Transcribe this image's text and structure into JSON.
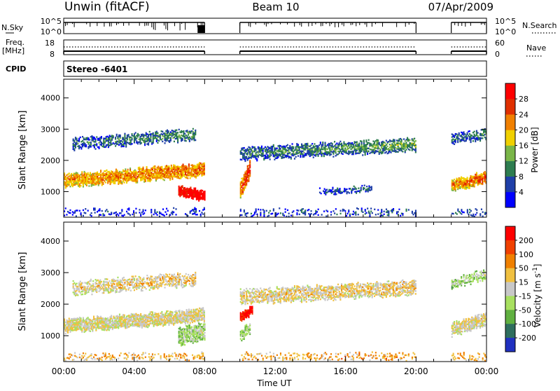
{
  "header": {
    "station": "Unwin (fitACF)",
    "beam": "Beam 10",
    "date": "07/Apr/2009"
  },
  "summary": {
    "nsky_label": "N.Sky",
    "nsky_ticks": [
      "10^5",
      "10^0"
    ],
    "nsearch_label": "N.Search",
    "freq_label": "Freq.",
    "freq_unit": "[MHz]",
    "freq_ticks": [
      "18",
      "8"
    ],
    "nave_label": "Nave",
    "nave_ticks": [
      "60",
      "0"
    ],
    "cpid_label": "CPID",
    "cpid_value": "Stereo -6401"
  },
  "chart_data": [
    {
      "type": "heatmap",
      "panel": "power",
      "ylabel": "Slant Range [km]",
      "xlabel": "Time UT",
      "x_ticks": [
        "00:00",
        "04:00",
        "08:00",
        "12:00",
        "16:00",
        "20:00",
        "00:00"
      ],
      "y_ticks": [
        1000,
        2000,
        3000,
        4000
      ],
      "xlim": [
        0,
        24
      ],
      "ylim": [
        180,
        4600
      ],
      "data_gaps": [
        [
          8.0,
          10.0
        ],
        [
          20.0,
          22.0
        ]
      ],
      "colorbar": {
        "label": "Power [dB]",
        "ticks": [
          4,
          8,
          12,
          16,
          20,
          24,
          28
        ],
        "colors": [
          "#0000ff",
          "#1f3fa8",
          "#2e7d50",
          "#7ab648",
          "#f0d000",
          "#f08000",
          "#e03000",
          "#ff0000"
        ]
      },
      "bands": [
        {
          "t": [
            0.0,
            8.0
          ],
          "r_start": [
            1150,
            1500
          ],
          "width": 400,
          "levels": [
            0.55,
            0.75
          ],
          "density": 0.9
        },
        {
          "t": [
            0.5,
            7.5
          ],
          "r_start": [
            2350,
            2650
          ],
          "width": 350,
          "levels": [
            0.12,
            0.4
          ],
          "density": 0.6
        },
        {
          "t": [
            6.5,
            8.0
          ],
          "r_start": [
            900,
            700
          ],
          "width": 300,
          "levels": [
            0.9,
            1.0
          ],
          "density": 0.95
        },
        {
          "t": [
            10.0,
            20.0
          ],
          "r_start": [
            2000,
            2300
          ],
          "width": 400,
          "levels": [
            0.12,
            0.45
          ],
          "density": 0.7
        },
        {
          "t": [
            10.0,
            10.6
          ],
          "r_start": [
            800,
            1500
          ],
          "width": 500,
          "levels": [
            0.6,
            0.95
          ],
          "density": 0.85
        },
        {
          "t": [
            14.5,
            17.5
          ],
          "r_start": [
            900,
            1000
          ],
          "width": 150,
          "levels": [
            0.1,
            0.3
          ],
          "density": 0.6
        },
        {
          "t": [
            22.0,
            24.0
          ],
          "r_start": [
            1000,
            1300
          ],
          "width": 350,
          "levels": [
            0.5,
            0.85
          ],
          "density": 0.9
        },
        {
          "t": [
            22.0,
            24.0
          ],
          "r_start": [
            2500,
            2700
          ],
          "width": 300,
          "levels": [
            0.12,
            0.35
          ],
          "density": 0.6
        },
        {
          "t": [
            0.0,
            24.0
          ],
          "r_start": [
            220,
            220
          ],
          "width": 200,
          "levels": [
            0.05,
            0.25
          ],
          "density": 0.25
        }
      ]
    },
    {
      "type": "heatmap",
      "panel": "velocity",
      "ylabel": "Slant Range [km]",
      "xlabel": "Time UT",
      "x_ticks": [
        "00:00",
        "04:00",
        "08:00",
        "12:00",
        "16:00",
        "20:00",
        "00:00"
      ],
      "y_ticks": [
        1000,
        2000,
        3000,
        4000
      ],
      "xlim": [
        0,
        24
      ],
      "ylim": [
        180,
        4600
      ],
      "data_gaps": [
        [
          8.0,
          10.0
        ],
        [
          20.0,
          22.0
        ]
      ],
      "colorbar": {
        "label": "Velocity [m s^-1]",
        "ticks": [
          200,
          100,
          50,
          15,
          -15,
          -50,
          -100,
          -200
        ],
        "colors": [
          "#2030c0",
          "#2e6e5e",
          "#60b040",
          "#a8e060",
          "#c8c8c8",
          "#f0c040",
          "#f08000",
          "#f04000",
          "#ff0000"
        ]
      },
      "bands": [
        {
          "t": [
            0.0,
            8.0
          ],
          "r_start": [
            1100,
            1450
          ],
          "width": 400,
          "levels": [
            0.5,
            0.55
          ],
          "density": 0.9
        },
        {
          "t": [
            0.5,
            7.5
          ],
          "r_start": [
            2300,
            2600
          ],
          "width": 400,
          "levels": [
            0.45,
            0.65
          ],
          "density": 0.6
        },
        {
          "t": [
            6.5,
            8.0
          ],
          "r_start": [
            700,
            900
          ],
          "width": 500,
          "levels": [
            0.35,
            0.45
          ],
          "density": 0.85
        },
        {
          "t": [
            10.0,
            20.0
          ],
          "r_start": [
            2000,
            2300
          ],
          "width": 450,
          "levels": [
            0.5,
            0.6
          ],
          "density": 0.7
        },
        {
          "t": [
            10.0,
            10.7
          ],
          "r_start": [
            1450,
            1700
          ],
          "width": 250,
          "levels": [
            0.9,
            1.0
          ],
          "density": 0.9
        },
        {
          "t": [
            10.0,
            10.6
          ],
          "r_start": [
            800,
            1100
          ],
          "width": 350,
          "levels": [
            0.35,
            0.4
          ],
          "density": 0.8
        },
        {
          "t": [
            22.0,
            24.0
          ],
          "r_start": [
            1000,
            1300
          ],
          "width": 400,
          "levels": [
            0.5,
            0.55
          ],
          "density": 0.85
        },
        {
          "t": [
            22.0,
            24.0
          ],
          "r_start": [
            2500,
            2800
          ],
          "width": 300,
          "levels": [
            0.3,
            0.5
          ],
          "density": 0.6
        },
        {
          "t": [
            0.0,
            24.0
          ],
          "r_start": [
            220,
            220
          ],
          "width": 200,
          "levels": [
            0.6,
            0.7
          ],
          "density": 0.3
        }
      ]
    }
  ]
}
